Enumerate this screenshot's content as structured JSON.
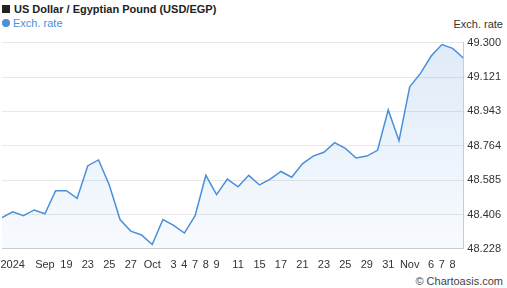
{
  "chart_data": {
    "type": "line",
    "title": "US Dollar / Egyptian Pound (USD/EGP)",
    "y_label": "Exch. rate",
    "source": "© Chartoasis.com",
    "categories": [
      null,
      "2024",
      null,
      null,
      "Sep",
      null,
      "19",
      null,
      "23",
      null,
      "25",
      null,
      "27",
      null,
      "Oct",
      null,
      "3",
      "4",
      "7",
      "8",
      "9",
      null,
      "11",
      null,
      "15",
      null,
      "17",
      null,
      "21",
      null,
      "23",
      null,
      "25",
      null,
      "29",
      null,
      "31",
      null,
      "Nov",
      null,
      "6",
      "7",
      "8",
      null
    ],
    "series": [
      {
        "name": "Exch. rate",
        "color": "#4a90d9",
        "values": [
          48.39,
          48.42,
          48.4,
          48.43,
          48.41,
          48.53,
          48.53,
          48.49,
          48.66,
          48.69,
          48.56,
          48.38,
          48.32,
          48.3,
          48.25,
          48.38,
          48.35,
          48.31,
          48.4,
          48.61,
          48.51,
          48.59,
          48.55,
          48.61,
          48.56,
          48.59,
          48.63,
          48.6,
          48.67,
          48.71,
          48.73,
          48.78,
          48.75,
          48.7,
          48.71,
          48.74,
          48.95,
          48.79,
          49.07,
          49.14,
          49.23,
          49.29,
          49.27,
          49.22
        ]
      }
    ],
    "ylim": [
      48.228,
      49.3
    ],
    "yticks": [
      48.228,
      48.406,
      48.585,
      48.764,
      48.943,
      49.121,
      {
        "value": 49.3,
        "label": "49.300"
      }
    ],
    "grid": true,
    "legend": "top-left"
  }
}
